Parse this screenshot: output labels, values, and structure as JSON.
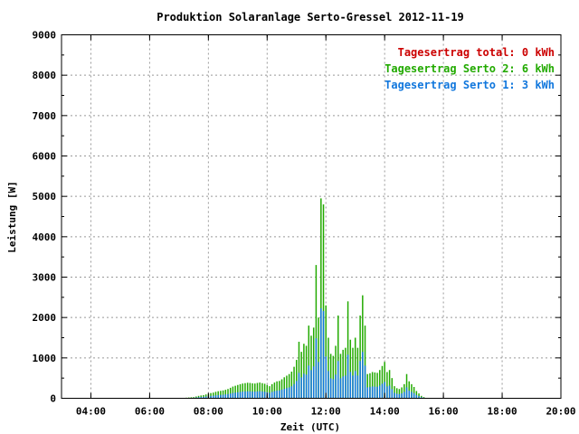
{
  "chart_data": {
    "type": "bar",
    "title": "Produktion Solaranlage Serto-Gressel 2012-11-19",
    "xlabel": "Zeit (UTC)",
    "ylabel": "Leistung [W]",
    "xlim": [
      "03:00",
      "20:00"
    ],
    "ylim": [
      0,
      9000
    ],
    "yticks": [
      "0",
      "1000",
      "2000",
      "3000",
      "4000",
      "5000",
      "6000",
      "7000",
      "8000",
      "9000"
    ],
    "xticks": [
      "04:00",
      "06:00",
      "08:00",
      "10:00",
      "12:00",
      "14:00",
      "16:00",
      "18:00",
      "20:00"
    ],
    "grid": true,
    "legend_position": "top-right",
    "legend": [
      {
        "label": "Tagesertrag total: 0 kWh",
        "color": "#cc0000"
      },
      {
        "label": "Tagesertrag Serto 2: 6 kWh",
        "color": "#22aa00"
      },
      {
        "label": "Tagesertrag Serto 1: 3 kWh",
        "color": "#1177dd"
      }
    ],
    "series_colors": {
      "serto2": "#22aa00",
      "serto1": "#1177dd"
    },
    "interval_minutes": 5,
    "x_start": "07:05",
    "serto2_values": [
      10,
      10,
      15,
      20,
      25,
      30,
      45,
      60,
      70,
      80,
      95,
      110,
      130,
      140,
      160,
      175,
      185,
      195,
      210,
      230,
      260,
      290,
      310,
      330,
      350,
      365,
      375,
      385,
      380,
      370,
      365,
      380,
      390,
      375,
      360,
      330,
      300,
      350,
      390,
      420,
      430,
      470,
      520,
      560,
      600,
      660,
      780,
      950,
      1400,
      1150,
      1350,
      1300,
      1800,
      1550,
      1750,
      3300,
      2000,
      4950,
      4800,
      2300,
      1500,
      1100,
      1050,
      1300,
      2050,
      1100,
      1200,
      1250,
      2400,
      1450,
      1250,
      1500,
      1250,
      2050,
      2550,
      1800,
      600,
      620,
      650,
      640,
      630,
      700,
      800,
      900,
      650,
      700,
      500,
      300,
      250,
      230,
      270,
      350,
      600,
      420,
      350,
      280,
      180,
      120,
      60,
      30,
      10
    ]
  }
}
